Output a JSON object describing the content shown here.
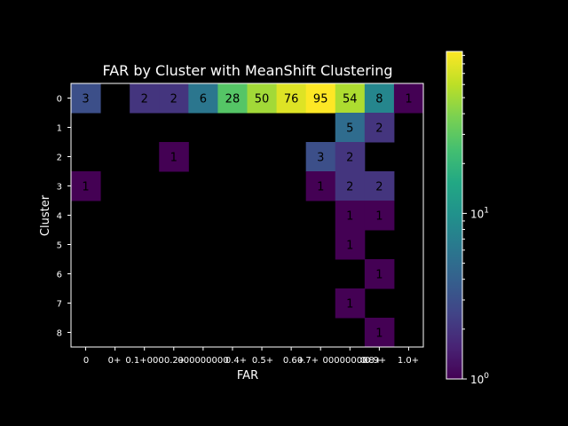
{
  "chart_data": {
    "type": "heatmap",
    "title": "FAR by Cluster with MeanShift Clustering",
    "xlabel": "FAR",
    "ylabel": "Cluster",
    "x_tick_labels": [
      "0",
      "0+",
      "0.1+",
      "0.2+",
      "0.3+",
      "0.4+",
      "0.5+",
      "0.6+",
      "0.7+",
      "0.8+",
      "0.9+",
      "1.0+"
    ],
    "x_tick_labels_note": "tick labels are overlapping/garbled in the original; shown as they render",
    "x_tick_labels_raw": [
      "0",
      "0+",
      "0.1+000",
      "0.2+",
      "000000000",
      "0.4+",
      "0.5+",
      "0.6+",
      "0.7+",
      "00000000",
      "0.8+",
      "0.9+",
      "1.0+"
    ],
    "y_tick_labels": [
      "0",
      "1",
      "2",
      "3",
      "4",
      "5",
      "6",
      "7",
      "8"
    ],
    "colorbar": {
      "scale": "log",
      "colormap": "viridis",
      "tick_labels": [
        "10^0",
        "10^1"
      ],
      "vmin": 1,
      "vmax": 95
    },
    "values": [
      [
        3,
        null,
        2,
        2,
        6,
        28,
        50,
        76,
        95,
        54,
        8,
        1
      ],
      [
        null,
        null,
        null,
        null,
        null,
        null,
        null,
        null,
        null,
        5,
        2,
        null
      ],
      [
        null,
        null,
        null,
        1,
        null,
        null,
        null,
        null,
        3,
        2,
        null,
        null
      ],
      [
        1,
        null,
        null,
        null,
        null,
        null,
        null,
        null,
        1,
        2,
        2,
        null
      ],
      [
        null,
        null,
        null,
        null,
        null,
        null,
        null,
        null,
        null,
        1,
        1,
        null
      ],
      [
        null,
        null,
        null,
        null,
        null,
        null,
        null,
        null,
        null,
        1,
        null,
        null
      ],
      [
        null,
        null,
        null,
        null,
        null,
        null,
        null,
        null,
        null,
        null,
        1,
        null
      ],
      [
        null,
        null,
        null,
        null,
        null,
        null,
        null,
        null,
        null,
        1,
        null,
        null
      ],
      [
        null,
        null,
        null,
        null,
        null,
        null,
        null,
        null,
        null,
        null,
        1,
        null
      ]
    ]
  }
}
